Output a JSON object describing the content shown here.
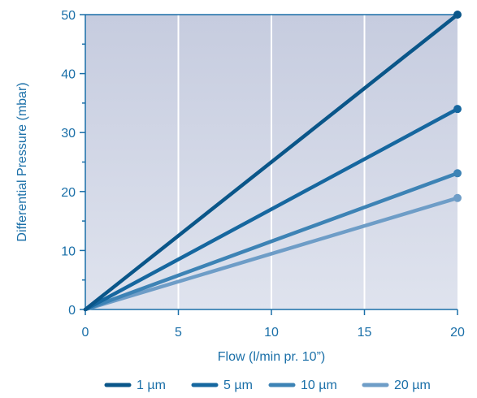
{
  "chart_data": {
    "type": "line",
    "title": "",
    "xlabel": "Flow (l/min pr. 10”)",
    "ylabel": "Differential Pressure  (mbar)",
    "xlim": [
      0,
      20
    ],
    "ylim": [
      0,
      50
    ],
    "x_ticks": [
      0,
      5,
      10,
      15,
      20
    ],
    "y_ticks": [
      0,
      10,
      20,
      30,
      40,
      50
    ],
    "grid": true,
    "legend_position": "bottom",
    "series": [
      {
        "name": "1 µm",
        "color": "#0a5689",
        "x": [
          0,
          20
        ],
        "y": [
          0,
          50
        ]
      },
      {
        "name": "5 µm",
        "color": "#16679f",
        "x": [
          0,
          20
        ],
        "y": [
          0,
          34
        ]
      },
      {
        "name": "10 µm",
        "color": "#3d83b5",
        "x": [
          0,
          20
        ],
        "y": [
          0,
          23.1
        ]
      },
      {
        "name": "20 µm",
        "color": "#6e9dc7",
        "x": [
          0,
          20
        ],
        "y": [
          0,
          18.9
        ]
      }
    ]
  },
  "colors": {
    "axis": "#1a6fa8",
    "plot_bg_top": "#c6ccdf",
    "plot_bg_bottom": "#dfe3ee",
    "grid": "#ffffff"
  }
}
